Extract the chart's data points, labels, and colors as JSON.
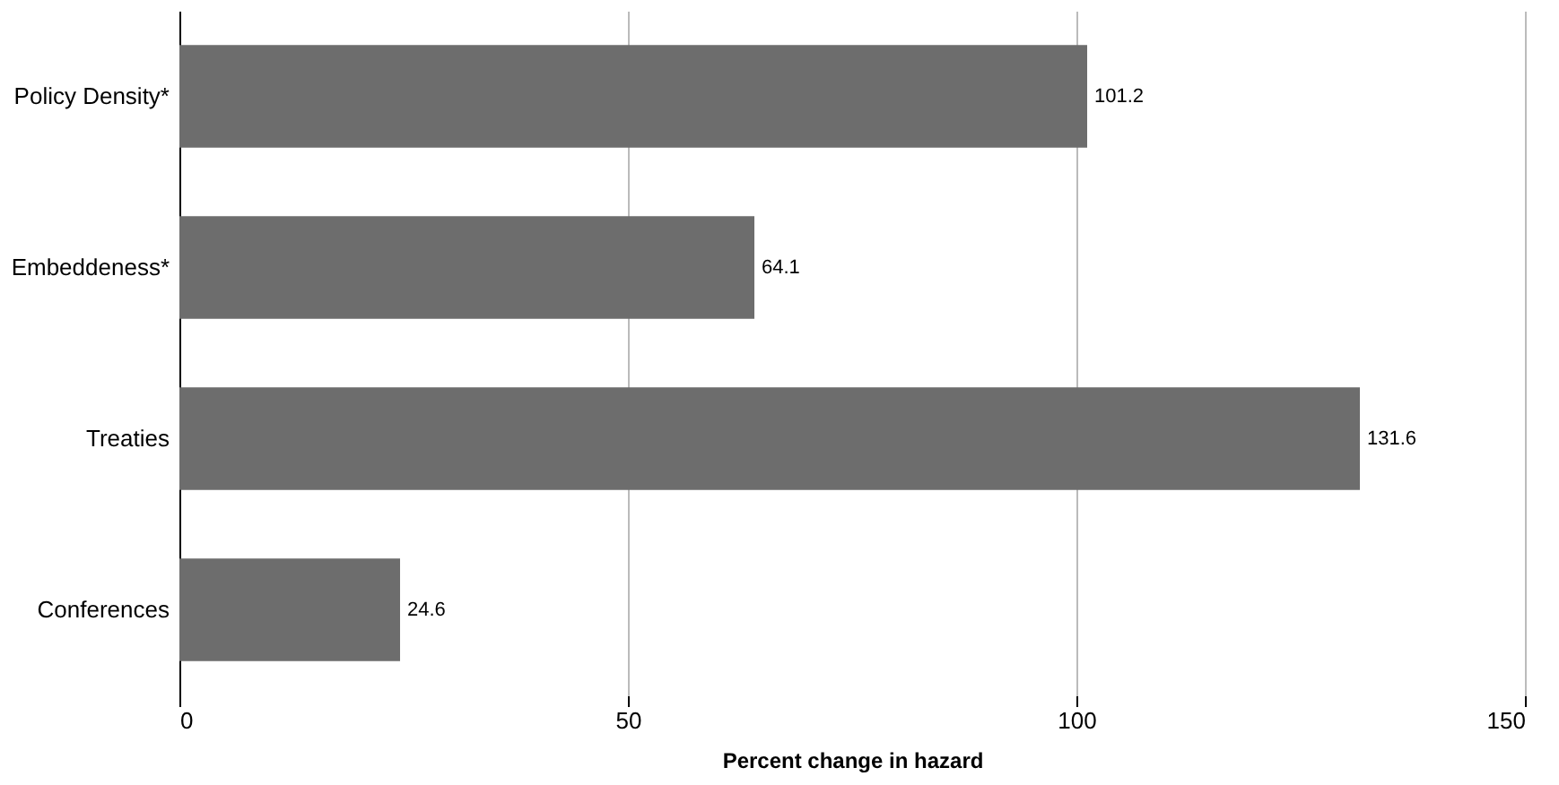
{
  "chart_data": {
    "type": "bar",
    "orientation": "horizontal",
    "xlabel": "Percent change in hazard",
    "categories": [
      "Policy Density*",
      "Embeddeness*",
      "Treaties",
      "Conferences"
    ],
    "values": [
      101.2,
      64.1,
      131.6,
      24.6
    ],
    "color": "#6d6d6d",
    "xlim": [
      0,
      150
    ],
    "xticks": [
      0,
      50,
      100,
      150
    ],
    "grid": "x",
    "data_labels": true
  }
}
